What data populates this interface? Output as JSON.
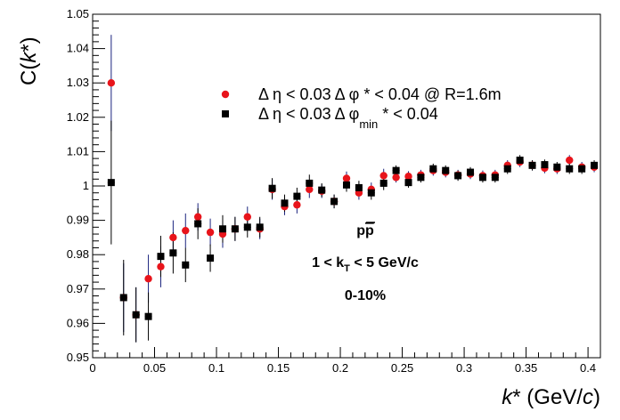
{
  "chart_data": {
    "type": "scatter",
    "xlabel": "k* (GeV/c)",
    "ylabel": "C(k*)",
    "xlim": [
      0,
      0.41
    ],
    "ylim": [
      0.95,
      1.05
    ],
    "x_ticks": [
      "0",
      "0.05",
      "0.1",
      "0.15",
      "0.2",
      "0.25",
      "0.3",
      "0.35",
      "0.4"
    ],
    "y_ticks": [
      "0.95",
      "0.96",
      "0.97",
      "0.98",
      "0.99",
      "1",
      "1.01",
      "1.02",
      "1.03",
      "1.04",
      "1.05"
    ],
    "legend_position": "top-center",
    "legend": [
      {
        "marker": "circle",
        "color": "#e8141b",
        "text_parts": [
          "Δ η < 0.03 Δ φ",
          "* < 0.04 @ R=1.6m"
        ],
        "sub": ""
      },
      {
        "marker": "square",
        "color": "#000000",
        "text_parts": [
          "Δ η < 0.03 Δ φ",
          "* < 0.04"
        ],
        "sub": "min"
      }
    ],
    "annotations": {
      "system_base": "p",
      "system_bar": "p",
      "kt_prefix": "1 < k",
      "kt_sub": "T",
      "kt_suffix": " < 5 GeV/c",
      "centrality": "0-10%"
    },
    "series": [
      {
        "color": "#e8141b",
        "marker": "circle",
        "x": [
          0.015,
          0.025,
          0.035,
          0.045,
          0.055,
          0.065,
          0.075,
          0.085,
          0.095,
          0.105,
          0.115,
          0.125,
          0.135,
          0.145,
          0.155,
          0.165,
          0.175,
          0.185,
          0.195,
          0.205,
          0.215,
          0.225,
          0.235,
          0.245,
          0.255,
          0.265,
          0.275,
          0.285,
          0.295,
          0.305,
          0.315,
          0.325,
          0.335,
          0.345,
          0.355,
          0.365,
          0.375,
          0.385,
          0.395,
          0.405
        ],
        "y": [
          1.03,
          0.9675,
          0.9625,
          0.973,
          0.9765,
          0.985,
          0.987,
          0.991,
          0.9865,
          0.986,
          0.9875,
          0.991,
          0.9875,
          0.999,
          0.994,
          0.9945,
          0.999,
          0.9985,
          0.9955,
          1.0022,
          0.998,
          0.999,
          1.003,
          1.0025,
          1.0028,
          1.0032,
          1.0045,
          1.004,
          1.0032,
          1.0035,
          1.003,
          1.0032,
          1.006,
          1.007,
          1.006,
          1.0052,
          1.005,
          1.0075,
          1.0055,
          1.0055
        ],
        "err": [
          0.014,
          0.01,
          0.008,
          0.007,
          0.006,
          0.005,
          0.005,
          0.004,
          0.004,
          0.004,
          0.0035,
          0.003,
          0.003,
          0.003,
          0.0025,
          0.0025,
          0.0025,
          0.002,
          0.002,
          0.002,
          0.002,
          0.002,
          0.002,
          0.0015,
          0.0015,
          0.0015,
          0.0015,
          0.0015,
          0.0015,
          0.0015,
          0.0015,
          0.0015,
          0.0015,
          0.0015,
          0.0015,
          0.0015,
          0.0015,
          0.0015,
          0.0015,
          0.0015
        ]
      },
      {
        "color": "#000000",
        "marker": "square",
        "x": [
          0.015,
          0.025,
          0.035,
          0.045,
          0.055,
          0.065,
          0.075,
          0.085,
          0.095,
          0.105,
          0.115,
          0.125,
          0.135,
          0.145,
          0.155,
          0.165,
          0.175,
          0.185,
          0.195,
          0.205,
          0.215,
          0.225,
          0.235,
          0.245,
          0.255,
          0.265,
          0.275,
          0.285,
          0.295,
          0.305,
          0.315,
          0.325,
          0.335,
          0.345,
          0.355,
          0.365,
          0.375,
          0.385,
          0.395,
          0.405
        ],
        "y": [
          1.001,
          0.9675,
          0.9625,
          0.962,
          0.9795,
          0.9805,
          0.977,
          0.989,
          0.979,
          0.9875,
          0.9875,
          0.988,
          0.988,
          0.9993,
          0.995,
          0.997,
          1.0008,
          0.9988,
          0.9955,
          1.0003,
          0.9995,
          0.998,
          1.0008,
          1.0045,
          1.001,
          1.0025,
          1.005,
          1.0045,
          1.003,
          1.004,
          1.0025,
          1.0025,
          1.005,
          1.0075,
          1.006,
          1.0062,
          1.0055,
          1.005,
          1.005,
          1.006
        ],
        "err": [
          0.018,
          0.011,
          0.008,
          0.007,
          0.006,
          0.006,
          0.005,
          0.0045,
          0.004,
          0.004,
          0.0035,
          0.003,
          0.003,
          0.003,
          0.0025,
          0.0025,
          0.0025,
          0.002,
          0.002,
          0.002,
          0.002,
          0.002,
          0.002,
          0.0015,
          0.0015,
          0.0015,
          0.0015,
          0.0015,
          0.0015,
          0.0015,
          0.0015,
          0.0015,
          0.0015,
          0.0015,
          0.0015,
          0.0015,
          0.0015,
          0.0015,
          0.0015,
          0.0015
        ]
      }
    ]
  }
}
